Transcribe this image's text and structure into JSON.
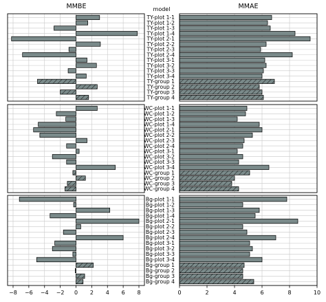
{
  "chart_data": {
    "type": "bar",
    "orientation": "horizontal",
    "model_label": "model",
    "grid": true,
    "bar_color": "#7a8a8a",
    "hatched_categories": [
      "TY-group 1",
      "TY-group 2",
      "TY-group 3",
      "TY-group 4",
      "WC-group 1",
      "WC-group 2",
      "WC-group 3",
      "WC-group 4",
      "Bg-group 1",
      "Bg-group 2",
      "Bg-group 3",
      "Bg-group 4"
    ],
    "groups": [
      {
        "categories": [
          "TY-plot 1-1",
          "TY-plot 1-2",
          "TY-plot 1-3",
          "TY-plot 1-4",
          "TY-plot 2-1",
          "TY-plot 2-2",
          "TY-plot 2-3",
          "TY-plot 2-4",
          "TY-plot 3-1",
          "TY-plot 3-2",
          "TY-plot 3-3",
          "TY-plot 3-4",
          "TY-group 1",
          "TY-group 2",
          "TY-group 3",
          "TY-group 4"
        ],
        "mmbe": [
          3.0,
          1.5,
          -2.8,
          7.8,
          -8.2,
          3.1,
          -0.9,
          -6.8,
          1.4,
          2.6,
          -1.0,
          1.3,
          -4.9,
          2.7,
          -2.0,
          1.6
        ],
        "mmae": [
          6.7,
          6.4,
          6.6,
          8.4,
          9.5,
          6.3,
          5.9,
          8.2,
          6.2,
          6.3,
          6.1,
          6.0,
          6.9,
          5.8,
          6.0,
          6.1
        ]
      },
      {
        "categories": [
          "WC-plot 1-1",
          "WC-plot 1-2",
          "WC-plot 1-3",
          "WC-plot 1-4",
          "WC-plot 2-1",
          "WC-plot 2-2",
          "WC-plot 2-3",
          "WC-plot 2-4",
          "WC-plot 3-1",
          "WC-plot 3-2",
          "WC-plot 3-3",
          "WC-plot 3-4",
          "WC-group 1",
          "WC-group 2",
          "WC-group 3",
          "WC-group 4"
        ],
        "mmbe": [
          2.7,
          -2.5,
          -1.3,
          -4.8,
          -5.4,
          -4.6,
          1.4,
          -1.2,
          0.4,
          -3.0,
          -1.2,
          5.0,
          -0.4,
          1.2,
          -1.1,
          -1.4
        ],
        "mmae": [
          4.9,
          4.8,
          4.2,
          5.8,
          6.0,
          5.3,
          4.7,
          4.6,
          4.2,
          4.6,
          4.3,
          6.5,
          5.1,
          4.0,
          3.8,
          4.3
        ]
      },
      {
        "categories": [
          "Bg-plot 1-1",
          "Bg-plot 1-2",
          "Bg-plot 1-3",
          "Bg-plot 1-4",
          "Bg-plot 2-1",
          "Bg-plot 2-2",
          "Bg-plot 2-3",
          "Bg-plot 2-4",
          "Bg-plot 3-1",
          "Bg-plot 3-2",
          "Bg-plot 3-3",
          "Bg-plot 3-4",
          "Bg-group 1",
          "Bg-group 2",
          "Bg-group 3",
          "Bg-group 4"
        ],
        "mmbe": [
          -7.2,
          -0.3,
          4.3,
          -3.3,
          8.0,
          0.6,
          -1.6,
          6.0,
          -2.7,
          -3.0,
          -0.4,
          -5.0,
          2.2,
          -0.1,
          1.1,
          0.9
        ],
        "mmae": [
          7.8,
          4.6,
          5.8,
          5.5,
          8.6,
          4.6,
          4.9,
          7.0,
          5.1,
          5.3,
          5.1,
          6.0,
          4.7,
          4.6,
          4.6,
          5.4
        ]
      }
    ],
    "panels": [
      {
        "title": "MMBE",
        "xlim": [
          -8.7,
          8.7
        ],
        "xticks": [
          -8,
          -6,
          -4,
          -2,
          0,
          2,
          4,
          6,
          8
        ],
        "xtick_labels": [
          "−8",
          "−6",
          "−4",
          "−2",
          "0",
          "2",
          "4",
          "6",
          "8"
        ]
      },
      {
        "title": "MMAE",
        "xlim": [
          0,
          10
        ],
        "xticks": [
          0,
          2,
          4,
          6,
          8,
          10
        ],
        "xtick_labels": [
          "0",
          "2",
          "4",
          "6",
          "8",
          "10"
        ]
      }
    ]
  }
}
